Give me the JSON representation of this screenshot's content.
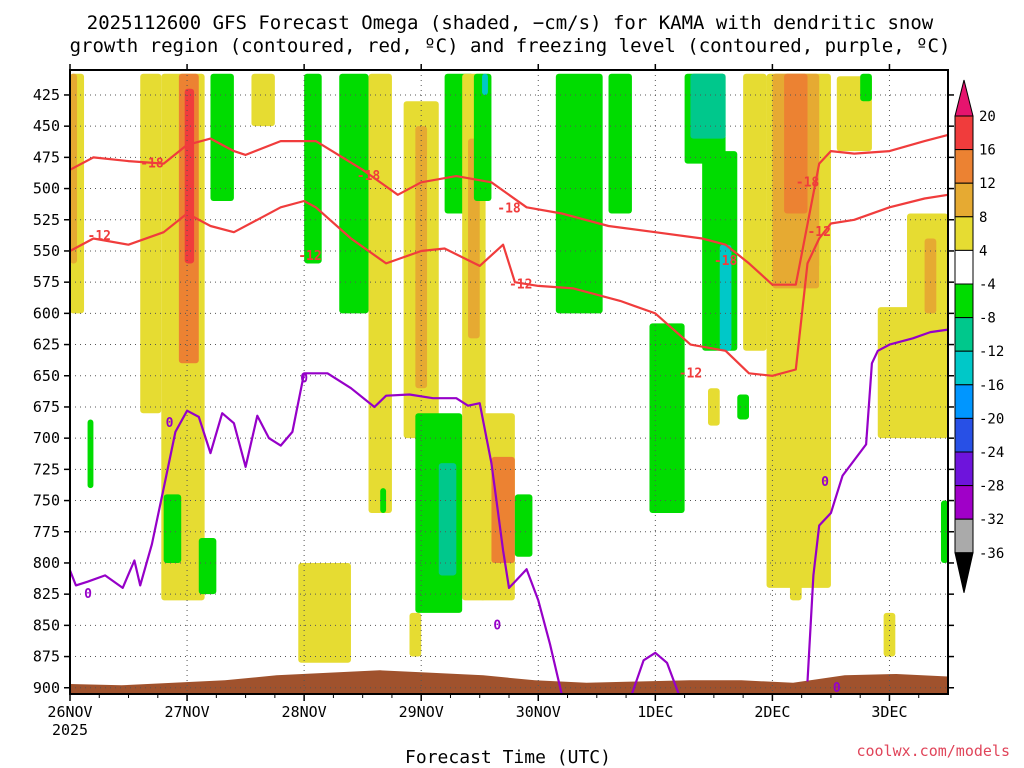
{
  "chart_data": {
    "type": "heatmap",
    "title_line1": "2025112600 GFS Forecast Omega (shaded, −cm/s) for KAMA with dendritic snow",
    "title_line2": "growth region (contoured, red, ºC) and freezing level (contoured, purple, ºC)",
    "xlabel": "Forecast Time (UTC)",
    "credit": "coolwx.com/models",
    "x_ticks": [
      "26NOV",
      "27NOV",
      "28NOV",
      "29NOV",
      "30NOV",
      "1DEC",
      "2DEC",
      "3DEC"
    ],
    "x_year": "2025",
    "x_range_days": [
      0,
      7.5
    ],
    "y_ticks": [
      "425",
      "450",
      "475",
      "500",
      "525",
      "550",
      "575",
      "600",
      "625",
      "650",
      "675",
      "700",
      "725",
      "750",
      "775",
      "800",
      "825",
      "850",
      "875",
      "900"
    ],
    "y_range_hpa": [
      405,
      905
    ],
    "colorbar": {
      "tick_labels": [
        "20",
        "16",
        "12",
        "8",
        "4",
        "-4",
        "-8",
        "-12",
        "-16",
        "-20",
        "-24",
        "-28",
        "-32",
        "-36"
      ],
      "bins": [
        {
          "lo": 16,
          "hi": 20,
          "color": "#f03c3c"
        },
        {
          "lo": 12,
          "hi": 16,
          "color": "#ec8232"
        },
        {
          "lo": 8,
          "hi": 12,
          "color": "#e6aa32"
        },
        {
          "lo": 4,
          "hi": 8,
          "color": "#e6dc32"
        },
        {
          "lo": -4,
          "hi": 4,
          "color": "#ffffff"
        },
        {
          "lo": -8,
          "hi": -4,
          "color": "#00dc00"
        },
        {
          "lo": -12,
          "hi": -8,
          "color": "#00c88c"
        },
        {
          "lo": -16,
          "hi": -12,
          "color": "#00c8c8"
        },
        {
          "lo": -20,
          "hi": -16,
          "color": "#0096ff"
        },
        {
          "lo": -24,
          "hi": -20,
          "color": "#2850e6"
        },
        {
          "lo": -28,
          "hi": -24,
          "color": "#6e14dc"
        },
        {
          "lo": -32,
          "hi": -28,
          "color": "#a000c8"
        },
        {
          "lo": -36,
          "hi": -32,
          "color": "#aaaaaa"
        }
      ],
      "top_cap_color": "#e6146e",
      "bottom_cap_color": "#000000"
    },
    "colors": {
      "dgz_contour": "#f03c3c",
      "freezing_contour": "#9600c8",
      "terrain": "#a0522d",
      "grid": "#555555"
    },
    "omega_regions": [
      {
        "value": 6,
        "t": [
          0.0,
          0.12
        ],
        "p": [
          408,
          600
        ]
      },
      {
        "value": 10,
        "t": [
          0.0,
          0.06
        ],
        "p": [
          408,
          560
        ]
      },
      {
        "value": 6,
        "t": [
          0.6,
          0.78
        ],
        "p": [
          408,
          680
        ]
      },
      {
        "value": 6,
        "t": [
          0.78,
          1.15
        ],
        "p": [
          408,
          830
        ]
      },
      {
        "value": 14,
        "t": [
          0.93,
          1.1
        ],
        "p": [
          408,
          640
        ]
      },
      {
        "value": 18,
        "t": [
          0.98,
          1.06
        ],
        "p": [
          420,
          560
        ]
      },
      {
        "value": -6,
        "t": [
          1.2,
          1.4
        ],
        "p": [
          408,
          510
        ]
      },
      {
        "value": 6,
        "t": [
          1.55,
          1.75
        ],
        "p": [
          408,
          450
        ]
      },
      {
        "value": -6,
        "t": [
          2.0,
          2.15
        ],
        "p": [
          408,
          560
        ]
      },
      {
        "value": -6,
        "t": [
          2.3,
          2.55
        ],
        "p": [
          408,
          600
        ]
      },
      {
        "value": 6,
        "t": [
          2.55,
          2.75
        ],
        "p": [
          408,
          760
        ]
      },
      {
        "value": 6,
        "t": [
          2.85,
          3.15
        ],
        "p": [
          430,
          700
        ]
      },
      {
        "value": 10,
        "t": [
          2.95,
          3.05
        ],
        "p": [
          450,
          660
        ]
      },
      {
        "value": -6,
        "t": [
          3.2,
          3.45
        ],
        "p": [
          408,
          520
        ]
      },
      {
        "value": 6,
        "t": [
          3.35,
          3.55
        ],
        "p": [
          408,
          830
        ]
      },
      {
        "value": 10,
        "t": [
          3.4,
          3.5
        ],
        "p": [
          460,
          620
        ]
      },
      {
        "value": -6,
        "t": [
          3.45,
          3.6
        ],
        "p": [
          408,
          510
        ]
      },
      {
        "value": -14,
        "t": [
          3.52,
          3.57
        ],
        "p": [
          408,
          425
        ]
      },
      {
        "value": -6,
        "t": [
          2.95,
          3.35
        ],
        "p": [
          680,
          840
        ]
      },
      {
        "value": -10,
        "t": [
          3.15,
          3.3
        ],
        "p": [
          720,
          810
        ]
      },
      {
        "value": 6,
        "t": [
          3.5,
          3.8
        ],
        "p": [
          680,
          830
        ]
      },
      {
        "value": 12,
        "t": [
          3.6,
          3.8
        ],
        "p": [
          715,
          800
        ]
      },
      {
        "value": 6,
        "t": [
          1.95,
          2.4
        ],
        "p": [
          800,
          880
        ]
      },
      {
        "value": 6,
        "t": [
          2.0,
          2.3
        ],
        "p": [
          840,
          875
        ]
      },
      {
        "value": 6,
        "t": [
          2.9,
          3.0
        ],
        "p": [
          840,
          875
        ]
      },
      {
        "value": -6,
        "t": [
          4.15,
          4.55
        ],
        "p": [
          408,
          600
        ]
      },
      {
        "value": -6,
        "t": [
          4.6,
          4.8
        ],
        "p": [
          408,
          520
        ]
      },
      {
        "value": -6,
        "t": [
          4.95,
          5.25
        ],
        "p": [
          608,
          760
        ]
      },
      {
        "value": -6,
        "t": [
          5.25,
          5.6
        ],
        "p": [
          408,
          480
        ]
      },
      {
        "value": -10,
        "t": [
          5.3,
          5.6
        ],
        "p": [
          408,
          460
        ]
      },
      {
        "value": -6,
        "t": [
          5.4,
          5.7
        ],
        "p": [
          470,
          630
        ]
      },
      {
        "value": -14,
        "t": [
          5.55,
          5.65
        ],
        "p": [
          545,
          630
        ]
      },
      {
        "value": -6,
        "t": [
          5.7,
          5.8
        ],
        "p": [
          665,
          685
        ]
      },
      {
        "value": 6,
        "t": [
          5.45,
          5.55
        ],
        "p": [
          660,
          690
        ]
      },
      {
        "value": 6,
        "t": [
          5.75,
          5.95
        ],
        "p": [
          408,
          630
        ]
      },
      {
        "value": 6,
        "t": [
          5.95,
          6.5
        ],
        "p": [
          408,
          820
        ]
      },
      {
        "value": 10,
        "t": [
          6.0,
          6.4
        ],
        "p": [
          408,
          580
        ]
      },
      {
        "value": 14,
        "t": [
          6.1,
          6.3
        ],
        "p": [
          408,
          520
        ]
      },
      {
        "value": 6,
        "t": [
          6.4,
          6.5
        ],
        "p": [
          560,
          760
        ]
      },
      {
        "value": 6,
        "t": [
          6.55,
          6.85
        ],
        "p": [
          410,
          470
        ]
      },
      {
        "value": 6,
        "t": [
          6.9,
          7.5
        ],
        "p": [
          595,
          700
        ]
      },
      {
        "value": 6,
        "t": [
          7.15,
          7.5
        ],
        "p": [
          520,
          620
        ]
      },
      {
        "value": 10,
        "t": [
          7.3,
          7.4
        ],
        "p": [
          540,
          600
        ]
      },
      {
        "value": -6,
        "t": [
          6.75,
          6.85
        ],
        "p": [
          408,
          430
        ]
      },
      {
        "value": -6,
        "t": [
          7.44,
          7.5
        ],
        "p": [
          750,
          800
        ]
      },
      {
        "value": 6,
        "t": [
          6.15,
          6.25
        ],
        "p": [
          790,
          830
        ]
      },
      {
        "value": 6,
        "t": [
          6.95,
          7.05
        ],
        "p": [
          840,
          875
        ]
      },
      {
        "value": -6,
        "t": [
          0.15,
          0.2
        ],
        "p": [
          685,
          740
        ]
      },
      {
        "value": -6,
        "t": [
          0.8,
          0.95
        ],
        "p": [
          745,
          800
        ]
      },
      {
        "value": -6,
        "t": [
          1.1,
          1.25
        ],
        "p": [
          780,
          825
        ]
      },
      {
        "value": -6,
        "t": [
          2.65,
          2.7
        ],
        "p": [
          740,
          760
        ]
      },
      {
        "value": -6,
        "t": [
          3.8,
          3.95
        ],
        "p": [
          745,
          795
        ]
      }
    ],
    "dgz_upper_18": {
      "t": [
        0.0,
        0.2,
        0.5,
        0.8,
        1.0,
        1.2,
        1.4,
        1.5,
        1.8,
        2.1,
        2.5,
        2.8,
        3.0,
        3.3,
        3.6,
        3.9,
        4.2,
        4.6,
        5.0,
        5.4,
        5.6,
        5.8,
        6.0,
        6.2,
        6.4,
        6.5,
        6.7,
        7.0,
        7.3,
        7.5
      ],
      "p": [
        485,
        475,
        478,
        480,
        465,
        460,
        470,
        473,
        462,
        462,
        485,
        505,
        495,
        490,
        495,
        515,
        520,
        530,
        535,
        540,
        545,
        560,
        577,
        577,
        480,
        470,
        472,
        470,
        462,
        457
      ]
    },
    "dgz_lower_12": {
      "t": [
        0.0,
        0.2,
        0.5,
        0.8,
        1.0,
        1.2,
        1.4,
        1.6,
        1.8,
        2.0,
        2.1,
        2.4,
        2.7,
        3.0,
        3.2,
        3.5,
        3.7,
        3.8,
        4.0,
        4.3,
        4.7,
        5.0,
        5.3,
        5.6,
        5.8,
        6.0,
        6.2,
        6.3,
        6.4,
        6.5,
        6.7,
        7.0,
        7.3,
        7.5
      ],
      "p": [
        550,
        540,
        545,
        535,
        520,
        530,
        535,
        525,
        515,
        510,
        515,
        540,
        560,
        550,
        548,
        562,
        545,
        575,
        578,
        580,
        590,
        600,
        625,
        630,
        648,
        650,
        645,
        560,
        540,
        528,
        525,
        515,
        508,
        505
      ]
    },
    "freezing_0": {
      "t": [
        0.0,
        0.05,
        0.15,
        0.3,
        0.45,
        0.55,
        0.6,
        0.7,
        0.8,
        0.9,
        1.0,
        1.1,
        1.2,
        1.3,
        1.4,
        1.5,
        1.6,
        1.7,
        1.8,
        1.9,
        2.0,
        2.2,
        2.4,
        2.6,
        2.7,
        2.9,
        3.1,
        3.3,
        3.4,
        3.5,
        3.6,
        3.65,
        3.7,
        3.75,
        3.8,
        3.9,
        4.0,
        4.1,
        4.2
      ],
      "p": [
        806,
        818,
        815,
        810,
        820,
        798,
        818,
        785,
        740,
        695,
        678,
        683,
        712,
        680,
        688,
        723,
        682,
        700,
        706,
        695,
        648,
        648,
        660,
        675,
        666,
        665,
        668,
        668,
        674,
        672,
        720,
        755,
        790,
        820,
        815,
        805,
        830,
        865,
        905
      ]
    },
    "freezing_0_loop_t": [
      4.8,
      4.9,
      5.0,
      5.1,
      5.2
    ],
    "freezing_0_loop_p": [
      905,
      878,
      872,
      880,
      905
    ],
    "freezing_0_right_t": [
      6.3,
      6.35,
      6.4,
      6.5,
      6.6,
      6.8,
      6.85,
      6.9,
      7.0,
      7.2,
      7.35,
      7.5
    ],
    "freezing_0_right_p": [
      895,
      810,
      770,
      760,
      730,
      705,
      640,
      630,
      625,
      620,
      615,
      613
    ],
    "terrain_p": [
      897,
      898,
      896,
      894,
      890,
      888,
      886,
      888,
      890,
      894,
      896,
      895,
      894,
      894,
      896,
      890,
      889,
      891
    ],
    "contour_labels": [
      "-18",
      "-12",
      "-18",
      "-12",
      "-18",
      "-12",
      "-18",
      "-12",
      "-18",
      "-12",
      "0",
      "0",
      "0",
      "0",
      "0",
      "0"
    ],
    "contour_label_positions": [
      {
        "t": 0.7,
        "p": 480,
        "c": "dgz"
      },
      {
        "t": 0.25,
        "p": 538,
        "c": "dgz"
      },
      {
        "t": 2.55,
        "p": 490,
        "c": "dgz"
      },
      {
        "t": 2.05,
        "p": 554,
        "c": "dgz"
      },
      {
        "t": 3.75,
        "p": 516,
        "c": "dgz"
      },
      {
        "t": 3.85,
        "p": 577,
        "c": "dgz"
      },
      {
        "t": 5.6,
        "p": 558,
        "c": "dgz"
      },
      {
        "t": 5.3,
        "p": 648,
        "c": "dgz"
      },
      {
        "t": 6.3,
        "p": 495,
        "c": "dgz"
      },
      {
        "t": 6.4,
        "p": 535,
        "c": "dgz"
      },
      {
        "t": -0.1,
        "p": 825,
        "c": "fz"
      },
      {
        "t": 0.85,
        "p": 688,
        "c": "fz"
      },
      {
        "t": 2.0,
        "p": 652,
        "c": "fz"
      },
      {
        "t": 3.65,
        "p": 850,
        "c": "fz"
      },
      {
        "t": 6.45,
        "p": 735,
        "c": "fz"
      },
      {
        "t": 6.55,
        "p": 900,
        "c": "fz"
      }
    ]
  }
}
